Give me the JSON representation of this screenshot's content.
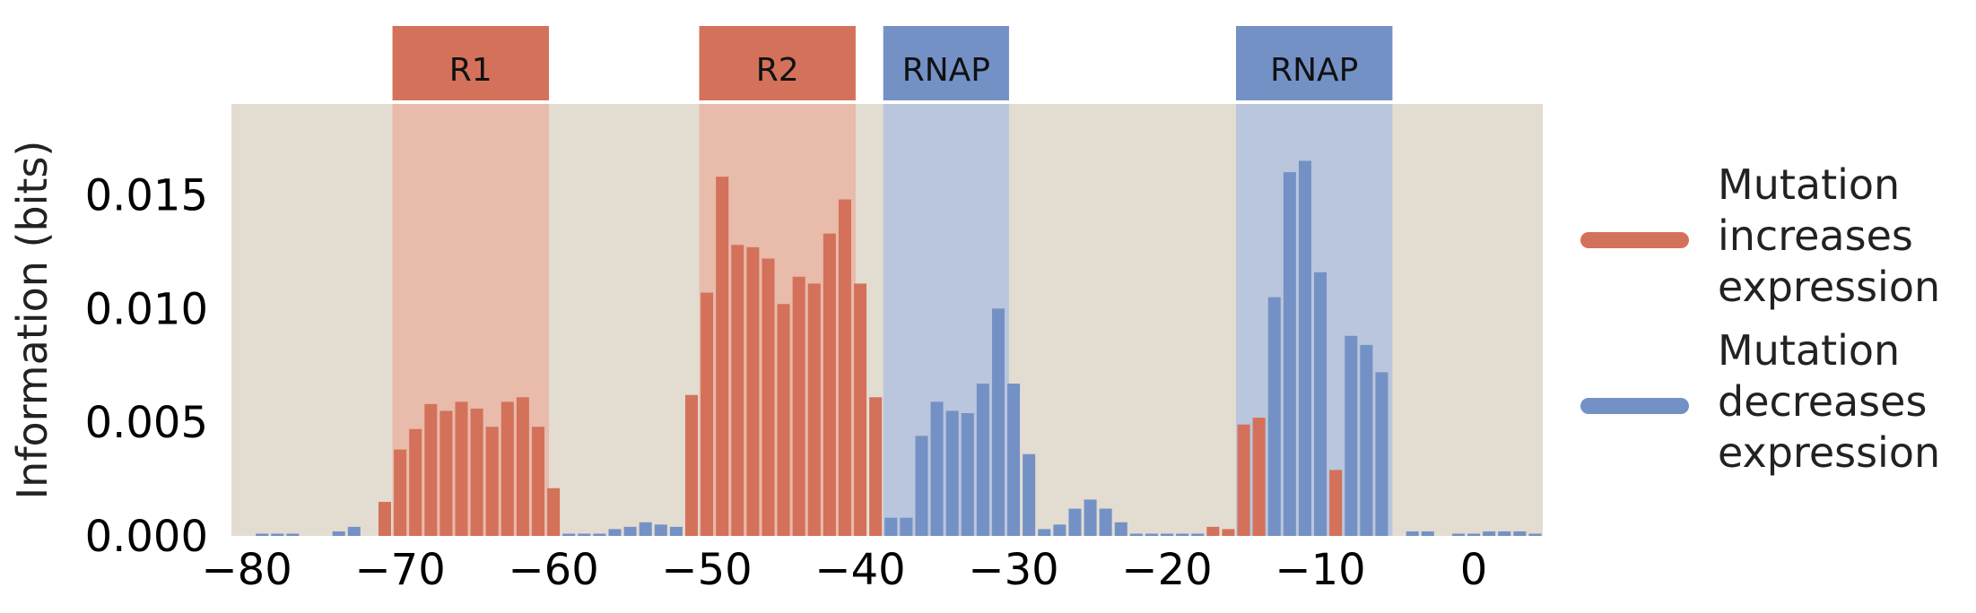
{
  "chart_data": {
    "type": "bar",
    "title": "",
    "xlabel": "",
    "ylabel": "Information (bits)",
    "xlim": [
      -81,
      4.5
    ],
    "ylim": [
      0,
      0.019
    ],
    "xticks": [
      -80,
      -70,
      -60,
      -50,
      -40,
      -30,
      -20,
      -10,
      0
    ],
    "xtick_labels": [
      "−80",
      "−70",
      "−60",
      "−50",
      "−40",
      "−30",
      "−20",
      "−10",
      "0"
    ],
    "yticks": [
      0.0,
      0.005,
      0.01,
      0.015
    ],
    "ytick_labels": [
      "0.000",
      "0.005",
      "0.010",
      "0.015"
    ],
    "grid": false,
    "legend_position": "right",
    "colors": {
      "increase": "#d4715a",
      "decrease": "#7491c6",
      "background": "#e3ddd1",
      "region_increase": "#e8bbab",
      "region_decrease": "#b9c6dd"
    },
    "regions": [
      {
        "label": "R1",
        "start": -70.5,
        "end": -60.3,
        "kind": "increase"
      },
      {
        "label": "R2",
        "start": -50.5,
        "end": -40.3,
        "kind": "increase"
      },
      {
        "label": "RNAP",
        "start": -38.5,
        "end": -30.3,
        "kind": "decrease"
      },
      {
        "label": "RNAP",
        "start": -15.5,
        "end": -5.3,
        "kind": "decrease"
      }
    ],
    "series": [
      {
        "name": "Mutation increases expression",
        "kind": "increase",
        "points": [
          [
            -71,
            0.0015
          ],
          [
            -70,
            0.0038
          ],
          [
            -69,
            0.0047
          ],
          [
            -68,
            0.0058
          ],
          [
            -67,
            0.0055
          ],
          [
            -66,
            0.0059
          ],
          [
            -65,
            0.0056
          ],
          [
            -64,
            0.0048
          ],
          [
            -63,
            0.0059
          ],
          [
            -62,
            0.0061
          ],
          [
            -61,
            0.0048
          ],
          [
            -60,
            0.0021
          ],
          [
            -51,
            0.0062
          ],
          [
            -50,
            0.0107
          ],
          [
            -49,
            0.0158
          ],
          [
            -48,
            0.0128
          ],
          [
            -47,
            0.0127
          ],
          [
            -46,
            0.0122
          ],
          [
            -45,
            0.0102
          ],
          [
            -44,
            0.0114
          ],
          [
            -43,
            0.0111
          ],
          [
            -42,
            0.0133
          ],
          [
            -41,
            0.0148
          ],
          [
            -40,
            0.0111
          ],
          [
            -39,
            0.0061
          ],
          [
            -17,
            0.0004
          ],
          [
            -16,
            0.0003
          ],
          [
            -15,
            0.0049
          ],
          [
            -14,
            0.0052
          ],
          [
            -9,
            0.0029
          ]
        ]
      },
      {
        "name": "Mutation decreases expression",
        "kind": "decrease",
        "points": [
          [
            -79,
            0.0001
          ],
          [
            -78,
            0.0001
          ],
          [
            -77,
            0.0001
          ],
          [
            -74,
            0.0002
          ],
          [
            -73,
            0.0004
          ],
          [
            -59,
            0.0001
          ],
          [
            -58,
            0.0001
          ],
          [
            -57,
            0.0001
          ],
          [
            -56,
            0.0003
          ],
          [
            -55,
            0.0004
          ],
          [
            -54,
            0.0006
          ],
          [
            -53,
            0.0005
          ],
          [
            -52,
            0.0004
          ],
          [
            -38,
            0.0008
          ],
          [
            -37,
            0.0008
          ],
          [
            -36,
            0.0044
          ],
          [
            -35,
            0.0059
          ],
          [
            -34,
            0.0055
          ],
          [
            -33,
            0.0054
          ],
          [
            -32,
            0.0067
          ],
          [
            -31,
            0.01
          ],
          [
            -30,
            0.0067
          ],
          [
            -29,
            0.0036
          ],
          [
            -28,
            0.0003
          ],
          [
            -27,
            0.0005
          ],
          [
            -26,
            0.0012
          ],
          [
            -25,
            0.0016
          ],
          [
            -24,
            0.0012
          ],
          [
            -23,
            0.0006
          ],
          [
            -22,
            0.0001
          ],
          [
            -21,
            0.0001
          ],
          [
            -20,
            0.0001
          ],
          [
            -19,
            0.0001
          ],
          [
            -18,
            0.0001
          ],
          [
            -13,
            0.0105
          ],
          [
            -12,
            0.016
          ],
          [
            -11,
            0.0165
          ],
          [
            -10,
            0.0116
          ],
          [
            -8,
            0.0088
          ],
          [
            -7,
            0.0084
          ],
          [
            -6,
            0.0072
          ],
          [
            -4,
            0.0002
          ],
          [
            -3,
            0.0002
          ],
          [
            -1,
            0.0001
          ],
          [
            0,
            0.0001
          ],
          [
            1,
            0.0002
          ],
          [
            2,
            0.0002
          ],
          [
            3,
            0.0002
          ],
          [
            4,
            0.0001
          ]
        ]
      }
    ]
  }
}
